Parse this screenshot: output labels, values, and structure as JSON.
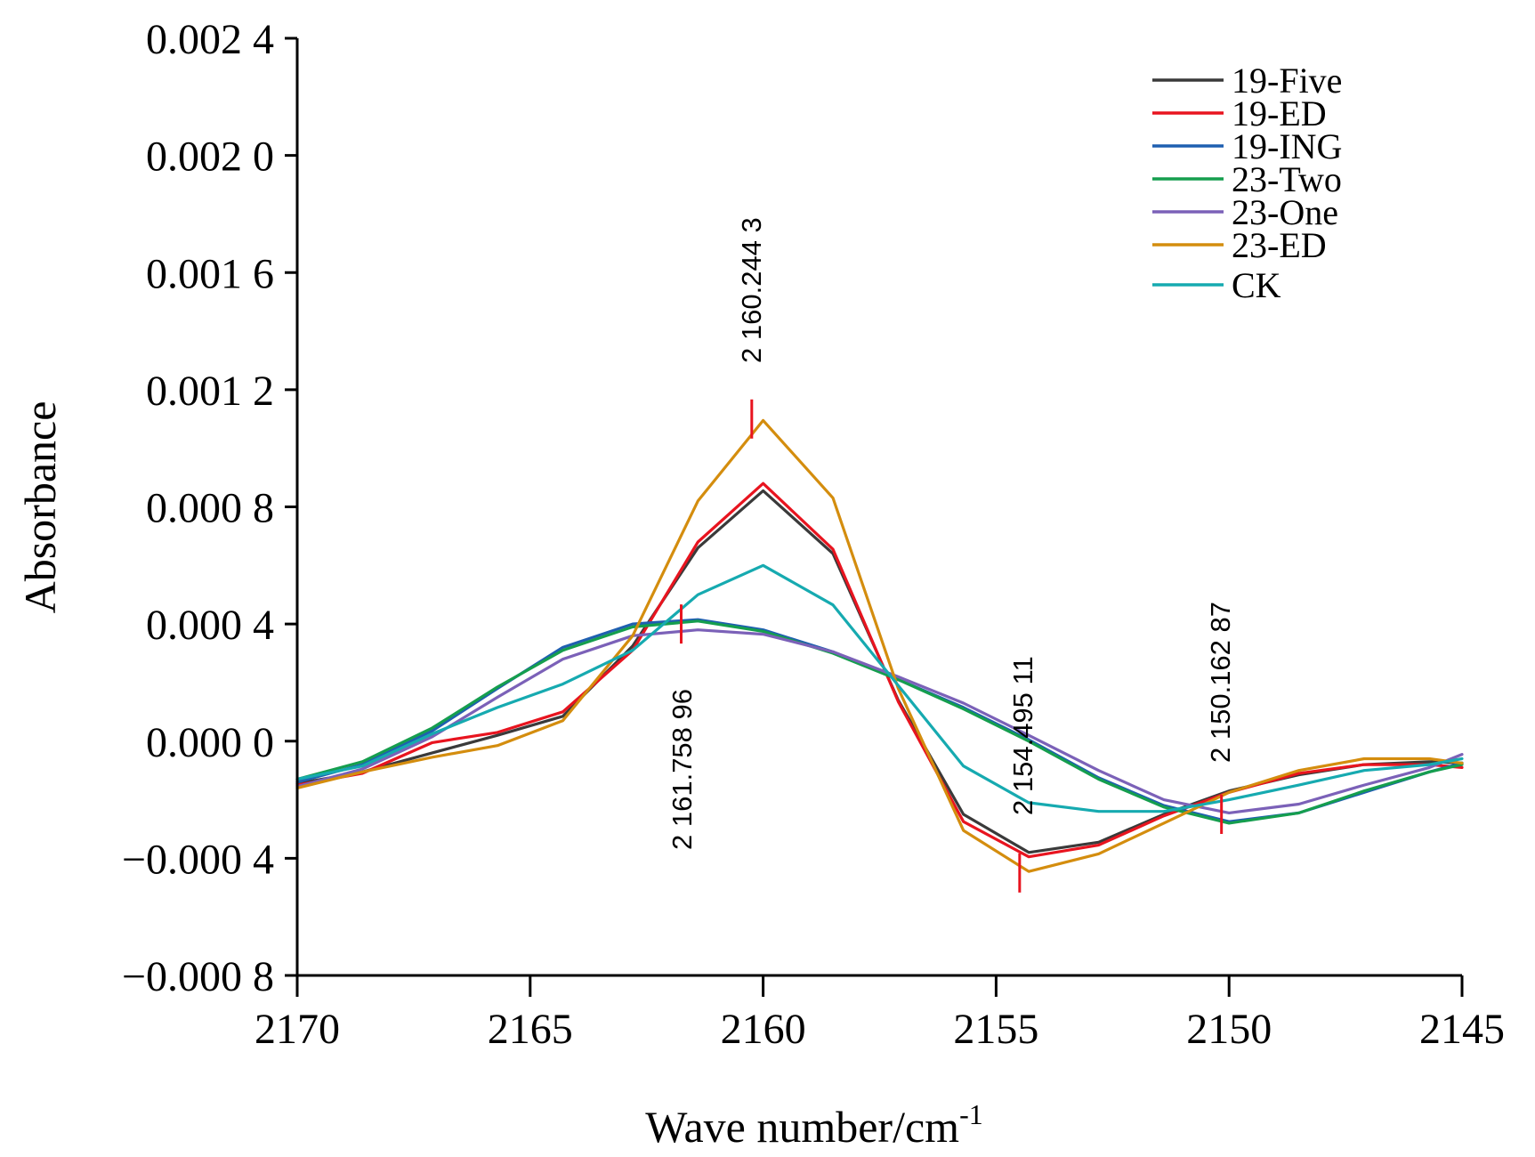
{
  "chart_data": {
    "type": "line",
    "title": "",
    "xlabel": "Wave number/cm",
    "xlabel_superscript": "-1",
    "ylabel": "Absorbance",
    "xlim": [
      2170,
      2145
    ],
    "ylim": [
      -0.0008,
      0.0024
    ],
    "x_reversed": true,
    "grid": false,
    "legend_position": "top-right",
    "x_ticks": [
      2170,
      2165,
      2160,
      2155,
      2150,
      2145
    ],
    "x_tick_labels": [
      "2170",
      "2165",
      "2160",
      "2155",
      "2150",
      "2145"
    ],
    "y_ticks": [
      0.0024,
      0.002,
      0.0016,
      0.0012,
      0.0008,
      0.0004,
      0,
      -0.0004,
      -0.0008
    ],
    "y_tick_labels": [
      "0.002 4",
      "0.002 0",
      "0.001 6",
      "0.001 2",
      "0.000 8",
      "0.000 4",
      "0.000 0",
      "−0.000 4",
      "−0.000 8"
    ],
    "x": [
      2170.0,
      2168.6,
      2167.1,
      2165.7,
      2164.3,
      2162.8,
      2161.4,
      2160.0,
      2158.5,
      2157.1,
      2155.7,
      2154.3,
      2152.8,
      2151.4,
      2150.0,
      2148.5,
      2147.1,
      2145.7,
      2145.0
    ],
    "series": [
      {
        "name": "19-Five",
        "color": "#3a3a3a",
        "values": [
          -0.000145,
          -0.000105,
          -4e-05,
          2e-05,
          8.5e-05,
          0.000325,
          0.00066,
          0.000855,
          0.00064,
          0.00014,
          -0.00025,
          -0.00038,
          -0.000345,
          -0.00025,
          -0.00017,
          -0.000115,
          -8e-05,
          -7e-05,
          -7.5e-05
        ]
      },
      {
        "name": "19-ED",
        "color": "#e8141f",
        "values": [
          -0.00015,
          -0.00011,
          -5e-06,
          3e-05,
          0.0001,
          0.00031,
          0.00068,
          0.00088,
          0.000655,
          0.000135,
          -0.000275,
          -0.000395,
          -0.000355,
          -0.000255,
          -0.000175,
          -0.00011,
          -8e-05,
          -8e-05,
          -9e-05
        ]
      },
      {
        "name": "19-ING",
        "color": "#1f5fb0",
        "values": [
          -0.00014,
          -8e-05,
          3.5e-05,
          0.00018,
          0.00032,
          0.0004,
          0.000415,
          0.00038,
          0.000305,
          0.00021,
          0.000115,
          5e-06,
          -0.000125,
          -0.00022,
          -0.000275,
          -0.000245,
          -0.000175,
          -0.000105,
          -7.5e-05
        ]
      },
      {
        "name": "23-Two",
        "color": "#159e4e",
        "values": [
          -0.00013,
          -7e-05,
          4.5e-05,
          0.000185,
          0.00031,
          0.00039,
          0.00041,
          0.000375,
          0.0003,
          0.00021,
          0.00011,
          0.0,
          -0.00013,
          -0.000225,
          -0.00028,
          -0.000245,
          -0.00017,
          -0.000105,
          -8e-05
        ]
      },
      {
        "name": "23-One",
        "color": "#7b61b8",
        "values": [
          -0.000155,
          -9.5e-05,
          1.5e-05,
          0.00015,
          0.00028,
          0.00036,
          0.00038,
          0.000365,
          0.000305,
          0.00022,
          0.00013,
          2e-05,
          -0.0001,
          -0.0002,
          -0.000245,
          -0.000215,
          -0.00015,
          -9e-05,
          -4.5e-05
        ]
      },
      {
        "name": "23-ED",
        "color": "#d48d0e",
        "values": [
          -0.00016,
          -0.000105,
          -5.5e-05,
          -1.5e-05,
          7e-05,
          0.00036,
          0.00082,
          0.001095,
          0.00083,
          0.00018,
          -0.000305,
          -0.000445,
          -0.000385,
          -0.00028,
          -0.000175,
          -0.0001,
          -6e-05,
          -6e-05,
          -7.5e-05
        ]
      },
      {
        "name": "CK",
        "color": "#16aab0",
        "values": [
          -0.00013,
          -8.5e-05,
          2.5e-05,
          0.000115,
          0.000195,
          0.00031,
          0.0005,
          0.0006,
          0.000465,
          0.00019,
          -8.5e-05,
          -0.00021,
          -0.00024,
          -0.00024,
          -0.0002,
          -0.00015,
          -0.0001,
          -8e-05,
          -6e-05
        ]
      }
    ],
    "annotations": [
      {
        "label": "2 160.244 3",
        "x": 2160.2443,
        "y": 0.0011
      },
      {
        "label": "2 161.758 96",
        "x": 2161.75896,
        "y": 0.0004
      },
      {
        "label": "2 154.495 11",
        "x": 2154.49511,
        "y": -0.00045
      },
      {
        "label": "2 150.162 87",
        "x": 2150.16287,
        "y": -0.00025
      }
    ]
  }
}
